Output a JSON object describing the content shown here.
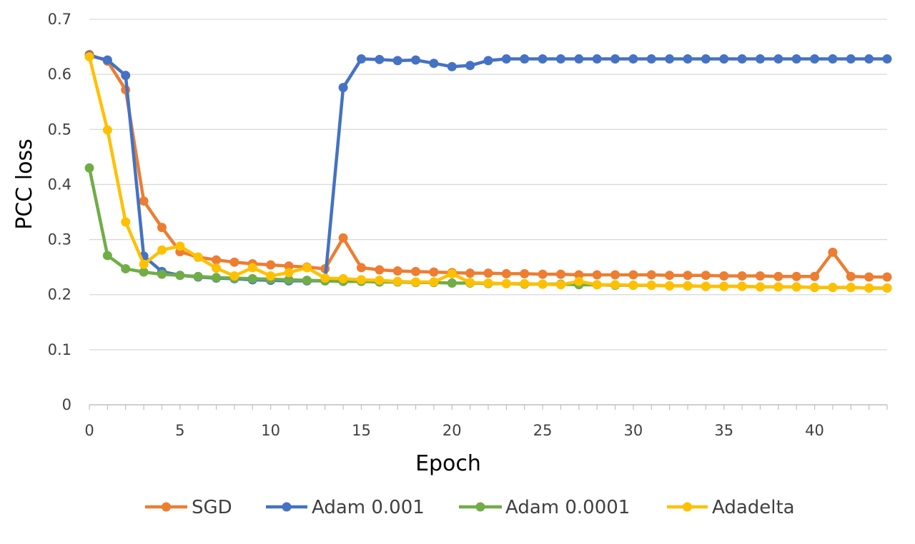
{
  "chart_data": {
    "type": "line",
    "title": "",
    "xlabel": "Epoch",
    "ylabel": "PCC loss",
    "xlim": [
      0,
      44
    ],
    "ylim": [
      0,
      0.7
    ],
    "x_ticks": [
      0,
      5,
      10,
      15,
      20,
      25,
      30,
      35,
      40
    ],
    "y_ticks": [
      0,
      0.1,
      0.2,
      0.3,
      0.4,
      0.5,
      0.6,
      0.7
    ],
    "y_tick_labels": [
      "0",
      "0.1",
      "0.2",
      "0.3",
      "0.4",
      "0.5",
      "0.6",
      "0.7"
    ],
    "grid": "horizontal",
    "legend_position": "bottom",
    "markers": true,
    "x": [
      0,
      1,
      2,
      3,
      4,
      5,
      6,
      7,
      8,
      9,
      10,
      11,
      12,
      13,
      14,
      15,
      16,
      17,
      18,
      19,
      20,
      21,
      22,
      23,
      24,
      25,
      26,
      27,
      28,
      29,
      30,
      31,
      32,
      33,
      34,
      35,
      36,
      37,
      38,
      39,
      40,
      41,
      42,
      43,
      44
    ],
    "series": [
      {
        "name": "SGD",
        "color": "#ED7D31",
        "values": [
          0.636,
          0.624,
          0.572,
          0.37,
          0.322,
          0.278,
          0.268,
          0.263,
          0.259,
          0.256,
          0.254,
          0.252,
          0.25,
          0.247,
          0.303,
          0.249,
          0.245,
          0.243,
          0.242,
          0.241,
          0.24,
          0.239,
          0.239,
          0.238,
          0.238,
          0.237,
          0.237,
          0.236,
          0.236,
          0.236,
          0.236,
          0.236,
          0.235,
          0.235,
          0.235,
          0.234,
          0.234,
          0.234,
          0.233,
          0.233,
          0.233,
          0.277,
          0.233,
          0.232,
          0.232
        ]
      },
      {
        "name": "Adam 0.001",
        "color": "#4472C4",
        "values": [
          0.634,
          0.626,
          0.598,
          0.27,
          0.242,
          0.235,
          0.232,
          0.23,
          0.229,
          0.227,
          0.226,
          0.225,
          0.225,
          0.225,
          0.576,
          0.628,
          0.627,
          0.625,
          0.626,
          0.62,
          0.614,
          0.616,
          0.625,
          0.628,
          0.628,
          0.628,
          0.628,
          0.628,
          0.628,
          0.628,
          0.628,
          0.628,
          0.628,
          0.628,
          0.628,
          0.628,
          0.628,
          0.628,
          0.628,
          0.628,
          0.628,
          0.628,
          0.628,
          0.628,
          0.628
        ]
      },
      {
        "name": "Adam 0.0001",
        "color": "#70AD47",
        "values": [
          0.43,
          0.271,
          0.247,
          0.241,
          0.237,
          0.235,
          0.233,
          0.231,
          0.23,
          0.229,
          0.228,
          0.227,
          0.226,
          0.225,
          0.224,
          0.224,
          0.223,
          0.223,
          0.222,
          0.222,
          0.221,
          0.221,
          0.22,
          0.22,
          0.219,
          0.219,
          0.219,
          0.218,
          0.218,
          0.217,
          0.217,
          0.217,
          0.216,
          0.216,
          0.215,
          0.215,
          0.215,
          0.214,
          0.214,
          0.214,
          0.213,
          0.213,
          0.213,
          0.212,
          0.212
        ]
      },
      {
        "name": "Adadelta",
        "color": "#FFC000",
        "values": [
          0.632,
          0.499,
          0.332,
          0.255,
          0.281,
          0.288,
          0.268,
          0.248,
          0.234,
          0.249,
          0.234,
          0.24,
          0.249,
          0.23,
          0.229,
          0.227,
          0.226,
          0.224,
          0.223,
          0.223,
          0.238,
          0.222,
          0.221,
          0.22,
          0.22,
          0.219,
          0.218,
          0.224,
          0.218,
          0.218,
          0.217,
          0.217,
          0.216,
          0.216,
          0.215,
          0.215,
          0.215,
          0.214,
          0.214,
          0.214,
          0.213,
          0.213,
          0.213,
          0.212,
          0.212
        ]
      }
    ]
  }
}
